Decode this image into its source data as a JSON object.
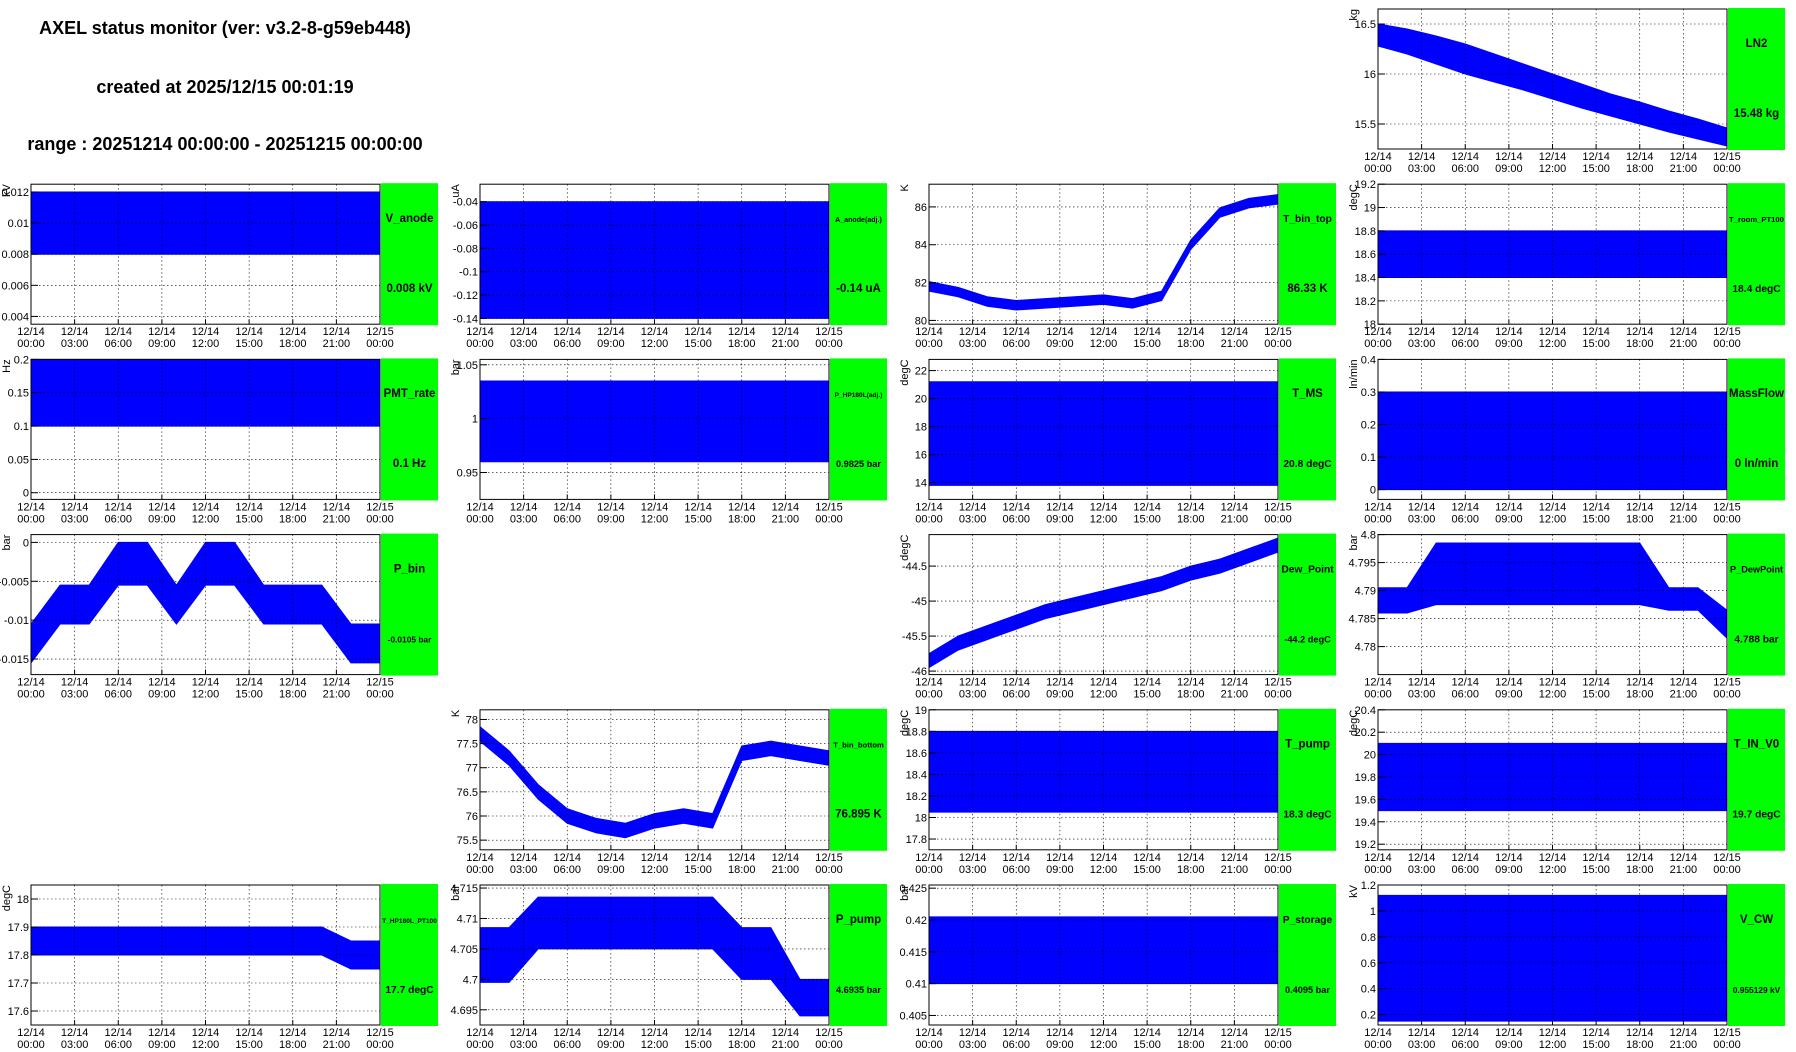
{
  "header": {
    "title": "AXEL status monitor (ver: v3.2-8-g59eb448)",
    "created": "created at 2025/12/15 00:01:19",
    "range": "range : 20251214 00:00:00 - 20251215 00:00:00"
  },
  "x_axis": {
    "x": [
      0,
      2,
      4,
      6,
      8,
      10,
      12,
      14,
      16,
      18,
      20,
      22,
      24
    ],
    "xlim": [
      0,
      24
    ],
    "xticks": [
      {
        "value": 0,
        "label": "12/14 00:00"
      },
      {
        "value": 3,
        "label": "12/14 03:00"
      },
      {
        "value": 6,
        "label": "12/14 06:00"
      },
      {
        "value": 9,
        "label": "12/14 09:00"
      },
      {
        "value": 12,
        "label": "12/14 12:00"
      },
      {
        "value": 15,
        "label": "12/14 15:00"
      },
      {
        "value": 18,
        "label": "12/14 18:00"
      },
      {
        "value": 21,
        "label": "12/14 21:00"
      },
      {
        "value": 24,
        "label": "12/15 00:00"
      }
    ]
  },
  "chart_data": [
    {
      "type": "band",
      "title": "LN2",
      "current_value": "15.48 kg",
      "y_label": "kg",
      "color": "#0000ff",
      "grid": true,
      "ylim": [
        15.25,
        16.65
      ],
      "yticks": [
        15.5,
        16,
        16.5
      ],
      "lower": [
        16.28,
        16.2,
        16.1,
        16.0,
        15.92,
        15.84,
        15.75,
        15.66,
        15.58,
        15.5,
        15.42,
        15.35,
        15.28
      ],
      "upper": [
        16.5,
        16.45,
        16.38,
        16.3,
        16.2,
        16.1,
        16.0,
        15.9,
        15.8,
        15.72,
        15.63,
        15.55,
        15.46
      ]
    },
    {
      "type": "band",
      "title": "V_anode",
      "current_value": "0.008 kV",
      "y_label": "kV",
      "color": "#0000ff",
      "grid": true,
      "ylim": [
        0.0035,
        0.0125
      ],
      "yticks": [
        0.004,
        0.006,
        0.008,
        0.01,
        0.012
      ],
      "lower": [
        0.008,
        0.008,
        0.008,
        0.008,
        0.008,
        0.008,
        0.008,
        0.008,
        0.008,
        0.008,
        0.008,
        0.008,
        0.008
      ],
      "upper": [
        0.012,
        0.012,
        0.012,
        0.012,
        0.012,
        0.012,
        0.012,
        0.012,
        0.012,
        0.012,
        0.012,
        0.012,
        0.012
      ]
    },
    {
      "type": "band",
      "title": "A_anode(adj.)",
      "current_value": "-0.14 uA",
      "y_label": "uA",
      "color": "#0000ff",
      "grid": true,
      "ylim": [
        -0.145,
        -0.025
      ],
      "yticks": [
        -0.14,
        -0.12,
        -0.1,
        -0.08,
        -0.06,
        -0.04
      ],
      "lower": [
        -0.14,
        -0.14,
        -0.14,
        -0.14,
        -0.14,
        -0.14,
        -0.14,
        -0.14,
        -0.14,
        -0.14,
        -0.14,
        -0.14,
        -0.14
      ],
      "upper": [
        -0.04,
        -0.04,
        -0.04,
        -0.04,
        -0.04,
        -0.04,
        -0.04,
        -0.04,
        -0.04,
        -0.04,
        -0.04,
        -0.04,
        -0.04
      ]
    },
    {
      "type": "band",
      "title": "T_bin_top",
      "current_value": "86.33 K",
      "y_label": "K",
      "color": "#0000ff",
      "grid": true,
      "ylim": [
        79.8,
        87.2
      ],
      "yticks": [
        80,
        82,
        84,
        86
      ],
      "lower": [
        81.55,
        81.25,
        80.75,
        80.55,
        80.65,
        80.75,
        80.85,
        80.65,
        81.05,
        83.75,
        85.45,
        85.95,
        86.15
      ],
      "upper": [
        82.05,
        81.75,
        81.25,
        81.05,
        81.15,
        81.25,
        81.35,
        81.15,
        81.55,
        84.25,
        85.95,
        86.45,
        86.65
      ]
    },
    {
      "type": "band",
      "title": "T_room_PT100",
      "current_value": "18.4 degC",
      "y_label": "degC",
      "color": "#0000ff",
      "grid": true,
      "ylim": [
        18.0,
        19.2
      ],
      "yticks": [
        18,
        18.2,
        18.4,
        18.6,
        18.8,
        19,
        19.2
      ],
      "lower": [
        18.4,
        18.4,
        18.4,
        18.4,
        18.4,
        18.4,
        18.4,
        18.4,
        18.4,
        18.4,
        18.4,
        18.4,
        18.4
      ],
      "upper": [
        18.8,
        18.8,
        18.8,
        18.8,
        18.8,
        18.8,
        18.8,
        18.8,
        18.8,
        18.8,
        18.8,
        18.8,
        18.8
      ]
    },
    {
      "type": "band",
      "title": "PMT_rate",
      "current_value": "0.1 Hz",
      "y_label": "Hz",
      "color": "#0000ff",
      "grid": true,
      "ylim": [
        -0.01,
        0.2
      ],
      "yticks": [
        0,
        0.05,
        0.1,
        0.15,
        0.2
      ],
      "lower": [
        0.1,
        0.1,
        0.1,
        0.1,
        0.1,
        0.1,
        0.1,
        0.1,
        0.1,
        0.1,
        0.1,
        0.1,
        0.1
      ],
      "upper": [
        0.2,
        0.2,
        0.2,
        0.2,
        0.2,
        0.2,
        0.2,
        0.2,
        0.2,
        0.2,
        0.2,
        0.2,
        0.2
      ]
    },
    {
      "type": "band",
      "title": "P_HP180L(adj.)",
      "current_value": "0.9825 bar",
      "y_label": "bar",
      "color": "#0000ff",
      "grid": true,
      "ylim": [
        0.925,
        1.055
      ],
      "yticks": [
        0.95,
        1,
        1.05
      ],
      "lower": [
        0.96,
        0.96,
        0.96,
        0.96,
        0.96,
        0.96,
        0.96,
        0.96,
        0.96,
        0.96,
        0.96,
        0.96,
        0.96
      ],
      "upper": [
        1.035,
        1.035,
        1.035,
        1.035,
        1.035,
        1.035,
        1.035,
        1.035,
        1.035,
        1.035,
        1.035,
        1.035,
        1.035
      ]
    },
    {
      "type": "band",
      "title": "T_MS",
      "current_value": "20.8 degC",
      "y_label": "degC",
      "color": "#0000ff",
      "grid": true,
      "ylim": [
        12.8,
        22.8
      ],
      "yticks": [
        14,
        16,
        18,
        20,
        22
      ],
      "lower": [
        13.8,
        13.8,
        13.8,
        13.8,
        13.8,
        13.8,
        13.8,
        13.8,
        13.8,
        13.8,
        13.8,
        13.8,
        13.8
      ],
      "upper": [
        21.2,
        21.2,
        21.2,
        21.2,
        21.2,
        21.2,
        21.2,
        21.2,
        21.2,
        21.2,
        21.2,
        21.2,
        21.2
      ]
    },
    {
      "type": "band",
      "title": "MassFlow",
      "current_value": "0 ln/min",
      "y_label": "ln/min",
      "color": "#0000ff",
      "grid": true,
      "ylim": [
        -0.03,
        0.4
      ],
      "yticks": [
        0,
        0.1,
        0.2,
        0.3,
        0.4
      ],
      "lower": [
        0,
        0,
        0,
        0,
        0,
        0,
        0,
        0,
        0,
        0,
        0,
        0,
        0
      ],
      "upper": [
        0.3,
        0.3,
        0.3,
        0.3,
        0.3,
        0.3,
        0.3,
        0.3,
        0.3,
        0.3,
        0.3,
        0.3,
        0.3
      ]
    },
    {
      "type": "band",
      "title": "P_bin",
      "current_value": "-0.0105 bar",
      "y_label": "bar",
      "color": "#0000ff",
      "grid": true,
      "ylim": [
        -0.017,
        0.001
      ],
      "yticks": [
        -0.015,
        -0.01,
        -0.005,
        0
      ],
      "lower": [
        -0.0155,
        -0.0105,
        -0.0105,
        -0.0055,
        -0.0055,
        -0.0105,
        -0.0055,
        -0.0055,
        -0.0105,
        -0.0105,
        -0.0105,
        -0.0155,
        -0.0155
      ],
      "upper": [
        -0.0105,
        -0.0055,
        -0.0055,
        0,
        0,
        -0.0055,
        0,
        0,
        -0.0055,
        -0.0055,
        -0.0055,
        -0.0105,
        -0.0105
      ]
    },
    {
      "type": "band",
      "title": "Dew_Point",
      "current_value": "-44.2 degC",
      "y_label": "degC",
      "color": "#0000ff",
      "grid": true,
      "ylim": [
        -46.05,
        -44.05
      ],
      "yticks": [
        -46,
        -45.5,
        -45,
        -44.5
      ],
      "lower": [
        -45.95,
        -45.7,
        -45.55,
        -45.4,
        -45.25,
        -45.15,
        -45.05,
        -44.95,
        -44.85,
        -44.7,
        -44.6,
        -44.45,
        -44.3
      ],
      "upper": [
        -45.75,
        -45.5,
        -45.35,
        -45.2,
        -45.05,
        -44.95,
        -44.85,
        -44.75,
        -44.65,
        -44.5,
        -44.4,
        -44.25,
        -44.1
      ]
    },
    {
      "type": "band",
      "title": "P_DewPoint",
      "current_value": "4.788 bar",
      "y_label": "bar",
      "color": "#0000ff",
      "grid": true,
      "ylim": [
        4.775,
        4.8
      ],
      "yticks": [
        4.78,
        4.785,
        4.79,
        4.795,
        4.8
      ],
      "lower": [
        4.786,
        4.786,
        4.7875,
        4.7875,
        4.7875,
        4.7875,
        4.7875,
        4.7875,
        4.7875,
        4.7875,
        4.7865,
        4.7865,
        4.7815
      ],
      "upper": [
        4.7905,
        4.7905,
        4.7985,
        4.7985,
        4.7985,
        4.7985,
        4.7985,
        4.7985,
        4.7985,
        4.7985,
        4.7905,
        4.7905,
        4.7865
      ]
    },
    {
      "type": "band",
      "title": "T_bin_bottom",
      "current_value": "76.895 K",
      "y_label": "K",
      "color": "#0000ff",
      "grid": true,
      "ylim": [
        75.3,
        78.2
      ],
      "yticks": [
        75.5,
        76,
        76.5,
        77,
        77.5,
        78
      ],
      "lower": [
        77.55,
        77.05,
        76.35,
        75.85,
        75.65,
        75.55,
        75.75,
        75.85,
        75.75,
        77.15,
        77.25,
        77.15,
        77.05
      ],
      "upper": [
        77.85,
        77.35,
        76.65,
        76.15,
        75.95,
        75.85,
        76.05,
        76.15,
        76.05,
        77.45,
        77.55,
        77.45,
        77.35
      ]
    },
    {
      "type": "band",
      "title": "T_pump",
      "current_value": "18.3 degC",
      "y_label": "degC",
      "color": "#0000ff",
      "grid": true,
      "ylim": [
        17.7,
        19.0
      ],
      "yticks": [
        17.8,
        18,
        18.2,
        18.4,
        18.6,
        18.8,
        19
      ],
      "lower": [
        18.05,
        18.05,
        18.05,
        18.05,
        18.05,
        18.05,
        18.05,
        18.05,
        18.05,
        18.05,
        18.05,
        18.05,
        18.05
      ],
      "upper": [
        18.8,
        18.8,
        18.8,
        18.8,
        18.8,
        18.8,
        18.8,
        18.8,
        18.8,
        18.8,
        18.8,
        18.8,
        18.8
      ]
    },
    {
      "type": "band",
      "title": "T_IN_V0",
      "current_value": "19.7 degC",
      "y_label": "degC",
      "color": "#0000ff",
      "grid": true,
      "ylim": [
        19.15,
        20.4
      ],
      "yticks": [
        19.2,
        19.4,
        19.6,
        19.8,
        20,
        20.2,
        20.4
      ],
      "lower": [
        19.5,
        19.5,
        19.5,
        19.5,
        19.5,
        19.5,
        19.5,
        19.5,
        19.5,
        19.5,
        19.5,
        19.5,
        19.5
      ],
      "upper": [
        20.1,
        20.1,
        20.1,
        20.1,
        20.1,
        20.1,
        20.1,
        20.1,
        20.1,
        20.1,
        20.1,
        20.1,
        20.1
      ]
    },
    {
      "type": "band",
      "title": "T_HP180L_PT100",
      "current_value": "17.7 degC",
      "y_label": "degC",
      "color": "#0000ff",
      "grid": true,
      "ylim": [
        17.55,
        18.05
      ],
      "yticks": [
        17.6,
        17.7,
        17.8,
        17.9,
        18
      ],
      "lower": [
        17.8,
        17.8,
        17.8,
        17.8,
        17.8,
        17.8,
        17.8,
        17.8,
        17.8,
        17.8,
        17.8,
        17.75,
        17.75
      ],
      "upper": [
        17.9,
        17.9,
        17.9,
        17.9,
        17.9,
        17.9,
        17.9,
        17.9,
        17.9,
        17.9,
        17.9,
        17.85,
        17.85
      ]
    },
    {
      "type": "band",
      "title": "P_pump",
      "current_value": "4.6935 bar",
      "y_label": "bar",
      "color": "#0000ff",
      "grid": true,
      "ylim": [
        4.6925,
        4.7155
      ],
      "yticks": [
        4.695,
        4.7,
        4.705,
        4.71,
        4.715
      ],
      "lower": [
        4.6995,
        4.6995,
        4.705,
        4.705,
        4.705,
        4.705,
        4.705,
        4.705,
        4.705,
        4.7,
        4.7,
        4.694,
        4.694
      ],
      "upper": [
        4.7085,
        4.7085,
        4.7135,
        4.7135,
        4.7135,
        4.7135,
        4.7135,
        4.7135,
        4.7135,
        4.7085,
        4.7085,
        4.7,
        4.7
      ]
    },
    {
      "type": "band",
      "title": "P_storage",
      "current_value": "0.4095 bar",
      "y_label": "bar",
      "color": "#0000ff",
      "grid": true,
      "ylim": [
        0.4035,
        0.4255
      ],
      "yticks": [
        0.405,
        0.41,
        0.415,
        0.42,
        0.425
      ],
      "lower": [
        0.41,
        0.41,
        0.41,
        0.41,
        0.41,
        0.41,
        0.41,
        0.41,
        0.41,
        0.41,
        0.41,
        0.41,
        0.41
      ],
      "upper": [
        0.4205,
        0.4205,
        0.4205,
        0.4205,
        0.4205,
        0.4205,
        0.4205,
        0.4205,
        0.4205,
        0.4205,
        0.4205,
        0.4205,
        0.4205
      ]
    },
    {
      "type": "band",
      "title": "V_CW",
      "current_value": "0.955129 kV",
      "y_label": "kV",
      "color": "#0000ff",
      "grid": true,
      "ylim": [
        0.12,
        1.2
      ],
      "yticks": [
        0.2,
        0.4,
        0.6,
        0.8,
        1,
        1.2
      ],
      "lower": [
        0.15,
        0.15,
        0.15,
        0.15,
        0.15,
        0.15,
        0.15,
        0.15,
        0.15,
        0.15,
        0.15,
        0.15,
        0.15
      ],
      "upper": [
        1.12,
        1.12,
        1.12,
        1.12,
        1.12,
        1.12,
        1.12,
        1.12,
        1.12,
        1.12,
        1.12,
        1.12,
        1.12
      ]
    }
  ]
}
